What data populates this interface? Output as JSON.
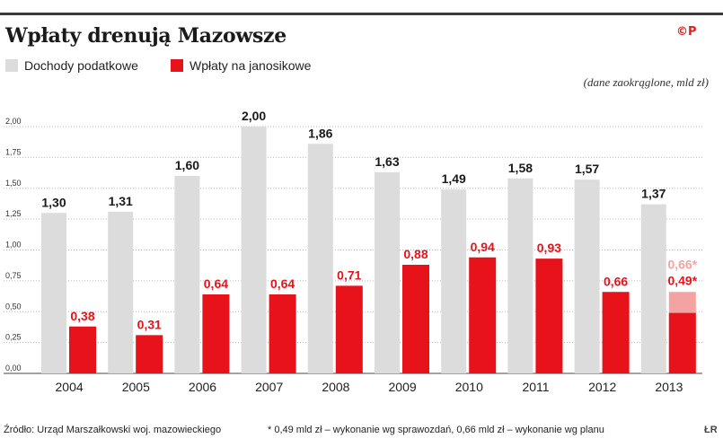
{
  "header": {
    "title": "Wpłaty drenują Mazowsze",
    "logo": "©P"
  },
  "legend": [
    {
      "label": "Dochody podatkowe",
      "color": "#dcdcdc"
    },
    {
      "label": "Wpłaty na janosikowe",
      "color": "#e8121b"
    }
  ],
  "note": "(dane zaokrąglone, mld zł)",
  "footer": {
    "source": "Źródło: Urząd Marszałkowski woj. mazowieckiego",
    "footnote": "* 0,49 mld zł – wykonanie wg sprawozdań, 0,66 mld zł – wykonanie wg planu",
    "mark": "ŁR"
  },
  "chart_data": {
    "type": "bar",
    "categories": [
      "2004",
      "2005",
      "2006",
      "2007",
      "2008",
      "2009",
      "2010",
      "2011",
      "2012",
      "2013"
    ],
    "series": [
      {
        "name": "Dochody podatkowe",
        "color": "#dcdcdc",
        "values": [
          1.3,
          1.31,
          1.6,
          2.0,
          1.86,
          1.63,
          1.49,
          1.58,
          1.57,
          1.37
        ],
        "labels": [
          "1,30",
          "1,31",
          "1,60",
          "2,00",
          "1,86",
          "1,63",
          "1,49",
          "1,58",
          "1,57",
          "1,37"
        ]
      },
      {
        "name": "Wpłaty na janosikowe",
        "color": "#e8121b",
        "values": [
          0.38,
          0.31,
          0.64,
          0.64,
          0.71,
          0.88,
          0.94,
          0.93,
          0.66,
          0.49
        ],
        "labels": [
          "0,38",
          "0,31",
          "0,64",
          "0,64",
          "0,71",
          "0,88",
          "0,94",
          "0,93",
          "0,66",
          "0,49*"
        ]
      }
    ],
    "planned_2013": {
      "value": 0.66,
      "label": "0,66*",
      "color": "#f4a3a3"
    },
    "ylim": [
      0,
      2.0
    ],
    "yticks": [
      0,
      0.25,
      0.5,
      0.75,
      1.0,
      1.25,
      1.5,
      1.75,
      2.0
    ],
    "ytick_labels": [
      "0,00",
      "0,25",
      "0,50",
      "0,75",
      "1,00",
      "1,25",
      "1,50",
      "1,75",
      "2,00"
    ],
    "grid": true,
    "legend_position": "top-left"
  }
}
